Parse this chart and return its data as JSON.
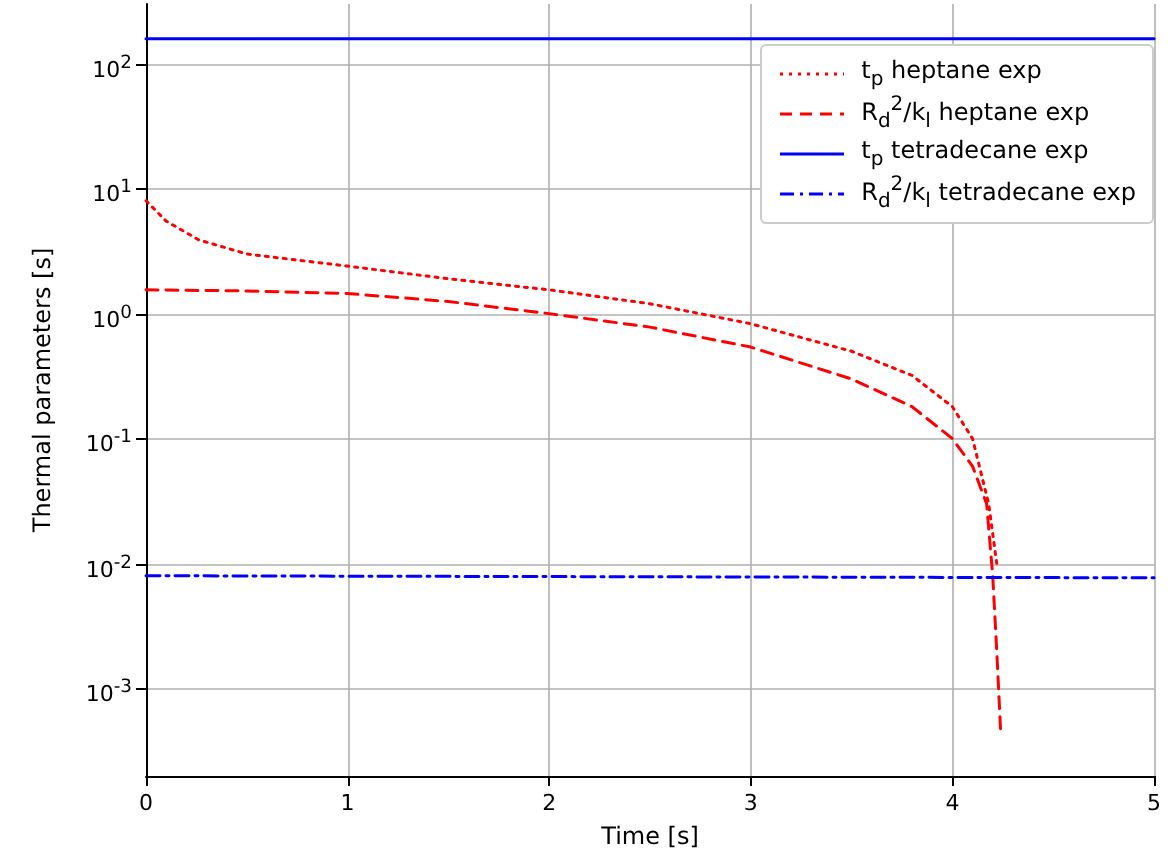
{
  "chart_data": {
    "type": "line",
    "xlabel": "Time [s]",
    "ylabel": "Thermal parameters [s]",
    "log": "y",
    "grid": true,
    "legend": "top right",
    "marker": "none",
    "xlim": [
      0,
      5
    ],
    "xticks": [
      0,
      1,
      2,
      3,
      4,
      5
    ],
    "ylim": [
      0.0002,
      300
    ],
    "yticks": [
      {
        "value": 0.001,
        "label": "10$^{-3}$"
      },
      {
        "value": 0.01,
        "label": "10$^{-2}$"
      },
      {
        "value": 0.1,
        "label": "10$^{-1}$"
      },
      {
        "value": 1,
        "label": "10$^{0}$"
      },
      {
        "value": 10,
        "label": "10$^{1}$"
      },
      {
        "value": 100,
        "label": "10$^{2}$"
      }
    ],
    "series": [
      {
        "name": "t$_{p}$ heptane exp",
        "color": "#ff0000",
        "line_style": "dotted",
        "x": [
          0,
          0.1,
          0.26,
          0.5,
          1,
          1.5,
          2,
          2.5,
          3,
          3.5,
          3.8,
          4,
          4.1,
          4.18,
          4.22
        ],
        "values": [
          8,
          5.5,
          3.9,
          3,
          2.4,
          1.9,
          1.55,
          1.2,
          0.83,
          0.5,
          0.32,
          0.18,
          0.1,
          0.03,
          0.01
        ]
      },
      {
        "name": "R$_{d}$$^{2}$/k$_{l}$ heptane exp",
        "color": "#ff0000",
        "line_style": "dashed",
        "x": [
          0,
          0.5,
          1,
          1.5,
          2,
          2.5,
          3,
          3.5,
          3.8,
          4,
          4.1,
          4.17,
          4.2,
          4.22,
          4.24
        ],
        "values": [
          1.55,
          1.52,
          1.45,
          1.25,
          1,
          0.78,
          0.54,
          0.3,
          0.18,
          0.1,
          0.06,
          0.03,
          0.008,
          0.002,
          0.00043
        ]
      },
      {
        "name": "t$_{p}$ tetradecane exp",
        "color": "#0000ff",
        "line_style": "solid",
        "x": [
          0,
          5
        ],
        "values": [
          158,
          158
        ]
      },
      {
        "name": "R$_{d}$$^{2}$/k$_{l}$ tetradecane exp",
        "color": "#0000ff",
        "line_style": "dashdot",
        "x": [
          0,
          5
        ],
        "values": [
          0.008,
          0.0077
        ]
      }
    ]
  }
}
